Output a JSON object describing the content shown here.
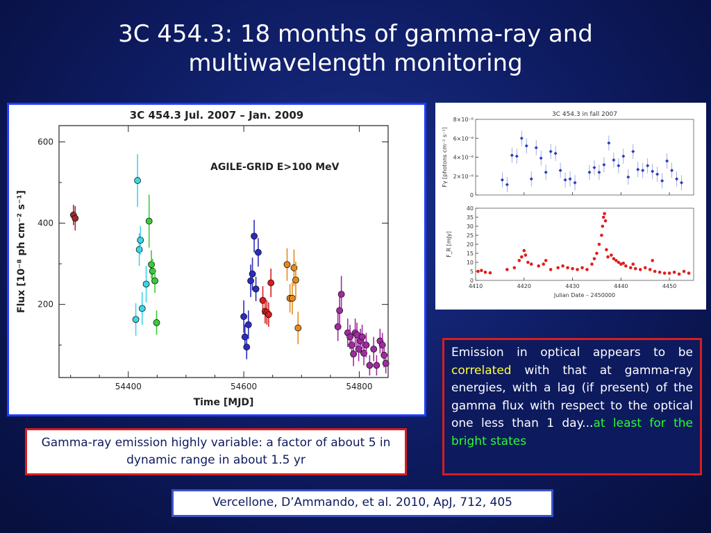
{
  "slide": {
    "title_line1": "3C 454.3: 18 months of gamma-ray and",
    "title_line2": "multiwavelength monitoring"
  },
  "callouts": {
    "left": "Gamma-ray emission highly variable: a factor of about 5 in dynamic range in about 1.5 yr",
    "right_part1": "Emission in optical appears to be ",
    "right_highlight1": "correlated",
    "right_part2": " with that at gamma-ray energies, with a lag (if present) of the gamma flux with respect to the optical one less than 1 day...",
    "right_highlight2": "at least for the bright states",
    "reference": "Vercellone, D’Ammando, et al. 2010, ApJ, 712, 405"
  },
  "colors": {
    "background": "#0d1a5e",
    "callout_border": "#d81e1e",
    "highlight_yellow": "#ffff3c",
    "highlight_green": "#2aff2a"
  },
  "chart_data": [
    {
      "type": "scatter",
      "title": "3C 454.3   Jul. 2007  –  Jan. 2009",
      "annotation": "AGILE-GRID E>100 MeV",
      "xlabel": "Time [MJD]",
      "ylabel": "Flux [10⁻⁸ ph cm⁻² s⁻¹]",
      "xlim": [
        54280,
        54850
      ],
      "ylim": [
        20,
        640
      ],
      "xticks": [
        54400,
        54600,
        54800
      ],
      "yticks": [
        200,
        400,
        600
      ],
      "grid": false,
      "series": [
        {
          "color": "#9a2a2a",
          "points": [
            [
              54305,
              420,
              25
            ],
            [
              54308,
              412,
              30
            ]
          ]
        },
        {
          "color": "#3cd6e6",
          "points": [
            [
              54416,
              505,
              65
            ],
            [
              54419,
              335,
              40
            ],
            [
              54421,
              358,
              35
            ],
            [
              54424,
              190,
              40
            ],
            [
              54413,
              163,
              40
            ],
            [
              54431,
              250,
              45
            ]
          ]
        },
        {
          "color": "#3cc83c",
          "points": [
            [
              54436,
              405,
              65
            ],
            [
              54440,
              298,
              35
            ],
            [
              54442,
              282,
              30
            ],
            [
              54446,
              258,
              30
            ],
            [
              54449,
              155,
              30
            ]
          ]
        },
        {
          "color": "#2c2cbc",
          "points": [
            [
              54600,
              170,
              40
            ],
            [
              54602,
              120,
              30
            ],
            [
              54605,
              95,
              30
            ],
            [
              54608,
              150,
              35
            ],
            [
              54612,
              258,
              40
            ],
            [
              54615,
              275,
              40
            ],
            [
              54618,
              368,
              40
            ],
            [
              54621,
              238,
              30
            ],
            [
              54625,
              328,
              35
            ]
          ]
        },
        {
          "color": "#d61e1e",
          "points": [
            [
              54633,
              210,
              35
            ],
            [
              54637,
              183,
              30
            ],
            [
              54640,
              180,
              30
            ],
            [
              54643,
              175,
              30
            ],
            [
              54647,
              253,
              35
            ]
          ]
        },
        {
          "color": "#e68a1e",
          "points": [
            [
              54675,
              298,
              40
            ],
            [
              54680,
              215,
              35
            ],
            [
              54684,
              215,
              40
            ],
            [
              54687,
              290,
              45
            ],
            [
              54690,
              260,
              45
            ],
            [
              54694,
              142,
              40
            ]
          ]
        },
        {
          "color": "#a02aa0",
          "points": [
            [
              54763,
              145,
              35
            ],
            [
              54766,
              185,
              40
            ],
            [
              54769,
              225,
              45
            ],
            [
              54780,
              130,
              35
            ],
            [
              54784,
              120,
              30
            ],
            [
              54787,
              100,
              30
            ],
            [
              54790,
              78,
              30
            ],
            [
              54793,
              130,
              35
            ],
            [
              54796,
              125,
              30
            ],
            [
              54799,
              90,
              30
            ],
            [
              54802,
              110,
              30
            ],
            [
              54805,
              120,
              30
            ],
            [
              54808,
              80,
              30
            ],
            [
              54812,
              100,
              30
            ],
            [
              54818,
              50,
              25
            ],
            [
              54825,
              90,
              30
            ],
            [
              54830,
              50,
              25
            ],
            [
              54836,
              110,
              30
            ],
            [
              54840,
              100,
              30
            ],
            [
              54843,
              75,
              30
            ],
            [
              54846,
              55,
              25
            ]
          ]
        }
      ]
    },
    {
      "type": "scatter",
      "title": "3C 454.3 in fall 2007",
      "ylabel": "Fγ [photons cm⁻² s⁻¹]",
      "yticks_labels": [
        "0",
        "2×10⁻⁶",
        "4×10⁻⁶",
        "6×10⁻⁶",
        "8×10⁻⁶"
      ],
      "yticks": [
        0,
        2,
        4,
        6,
        8
      ],
      "ylim": [
        0,
        8
      ],
      "xlim": [
        4410,
        4455
      ],
      "series": [
        {
          "color": "#2c3cbc",
          "points": [
            [
              4415.5,
              1.6
            ],
            [
              4416.5,
              1.1
            ],
            [
              4417.5,
              4.2
            ],
            [
              4418.5,
              4.1
            ],
            [
              4419.5,
              6.0
            ],
            [
              4420.5,
              5.2
            ],
            [
              4421.5,
              1.7
            ],
            [
              4422.5,
              5.0
            ],
            [
              4423.5,
              3.9
            ],
            [
              4424.5,
              2.4
            ],
            [
              4425.5,
              4.6
            ],
            [
              4426.5,
              4.4
            ],
            [
              4427.5,
              2.6
            ],
            [
              4428.5,
              1.6
            ],
            [
              4429.5,
              1.7
            ],
            [
              4430.5,
              1.3
            ],
            [
              4433.5,
              2.4
            ],
            [
              4434.5,
              2.9
            ],
            [
              4435.5,
              2.4
            ],
            [
              4436.5,
              3.2
            ],
            [
              4437.5,
              5.5
            ],
            [
              4438.5,
              3.7
            ],
            [
              4439.5,
              3.1
            ],
            [
              4440.5,
              4.1
            ],
            [
              4441.5,
              1.9
            ],
            [
              4442.5,
              4.6
            ],
            [
              4443.5,
              2.7
            ],
            [
              4444.5,
              2.6
            ],
            [
              4445.5,
              3.1
            ],
            [
              4446.5,
              2.5
            ],
            [
              4447.5,
              2.2
            ],
            [
              4448.5,
              1.5
            ],
            [
              4449.5,
              3.6
            ],
            [
              4450.5,
              2.6
            ],
            [
              4451.5,
              1.7
            ],
            [
              4452.5,
              1.3
            ]
          ]
        }
      ]
    },
    {
      "type": "scatter",
      "ylabel": "F_R [mJy]",
      "xlabel": "Julian Date – 2450000",
      "xlim": [
        4410,
        4455
      ],
      "ylim": [
        0,
        40
      ],
      "xticks": [
        4410,
        4420,
        4430,
        4440,
        4450
      ],
      "yticks": [
        0,
        5,
        10,
        15,
        20,
        25,
        30,
        35,
        40
      ],
      "series": [
        {
          "color": "#e01e1e",
          "points": [
            [
              4410.5,
              5
            ],
            [
              4411.2,
              5.5
            ],
            [
              4412,
              4.5
            ],
            [
              4413,
              4.2
            ],
            [
              4416.5,
              6
            ],
            [
              4418,
              7
            ],
            [
              4419,
              11
            ],
            [
              4419.5,
              13
            ],
            [
              4420,
              16.5
            ],
            [
              4420.3,
              14
            ],
            [
              4420.8,
              10
            ],
            [
              4421.5,
              9
            ],
            [
              4423,
              8
            ],
            [
              4424,
              9
            ],
            [
              4424.5,
              11
            ],
            [
              4425.5,
              6
            ],
            [
              4427,
              7
            ],
            [
              4428,
              8
            ],
            [
              4429,
              7
            ],
            [
              4430,
              6.5
            ],
            [
              4431,
              6
            ],
            [
              4432,
              7
            ],
            [
              4433,
              6
            ],
            [
              4434,
              9
            ],
            [
              4434.5,
              12
            ],
            [
              4435,
              15
            ],
            [
              4435.5,
              20
            ],
            [
              4436,
              25
            ],
            [
              4436.2,
              30
            ],
            [
              4436.4,
              35
            ],
            [
              4436.6,
              37
            ],
            [
              4436.8,
              33
            ],
            [
              4437,
              17
            ],
            [
              4437.3,
              13
            ],
            [
              4438,
              14
            ],
            [
              4438.5,
              12
            ],
            [
              4439,
              11
            ],
            [
              4439.5,
              10
            ],
            [
              4440,
              9
            ],
            [
              4440.5,
              9.5
            ],
            [
              4441,
              8
            ],
            [
              4442,
              7
            ],
            [
              4442.5,
              9
            ],
            [
              4443,
              6.5
            ],
            [
              4444,
              6
            ],
            [
              4445,
              7
            ],
            [
              4446,
              6
            ],
            [
              4446.5,
              11
            ],
            [
              4447,
              5
            ],
            [
              4448,
              4.5
            ],
            [
              4449,
              4
            ],
            [
              4450,
              4
            ],
            [
              4451,
              4.5
            ],
            [
              4452,
              3.5
            ],
            [
              4453,
              5
            ],
            [
              4454,
              4
            ]
          ]
        }
      ]
    }
  ]
}
